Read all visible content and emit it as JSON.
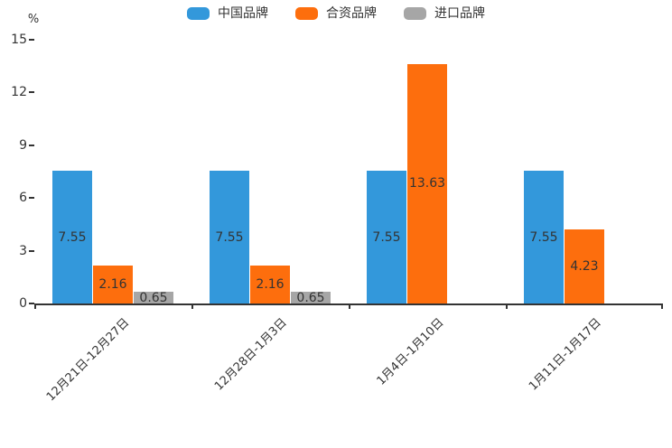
{
  "chart_data": {
    "type": "bar",
    "unit_label": "%",
    "categories": [
      "12月21日-12月27日",
      "12月28日-1月3日",
      "1月4日-1月10日",
      "1月11日-1月17日"
    ],
    "series": [
      {
        "name": "中国品牌",
        "color": "#3398db",
        "values": [
          7.55,
          7.55,
          7.55,
          7.55
        ]
      },
      {
        "name": "合资品牌",
        "color": "#fd6e0d",
        "values": [
          2.16,
          2.16,
          13.63,
          4.23
        ]
      },
      {
        "name": "进口品牌",
        "color": "#a6a6a6",
        "values": [
          0.65,
          0.65,
          null,
          null
        ]
      }
    ],
    "y_ticks": [
      0,
      3,
      6,
      9,
      12,
      15
    ],
    "ylim": [
      0,
      15
    ],
    "grid": false,
    "legend_position": "top",
    "value_labels": "inside-center",
    "x_label_rotation": -45,
    "axis_color": "#333333",
    "text_color": "#333333"
  }
}
